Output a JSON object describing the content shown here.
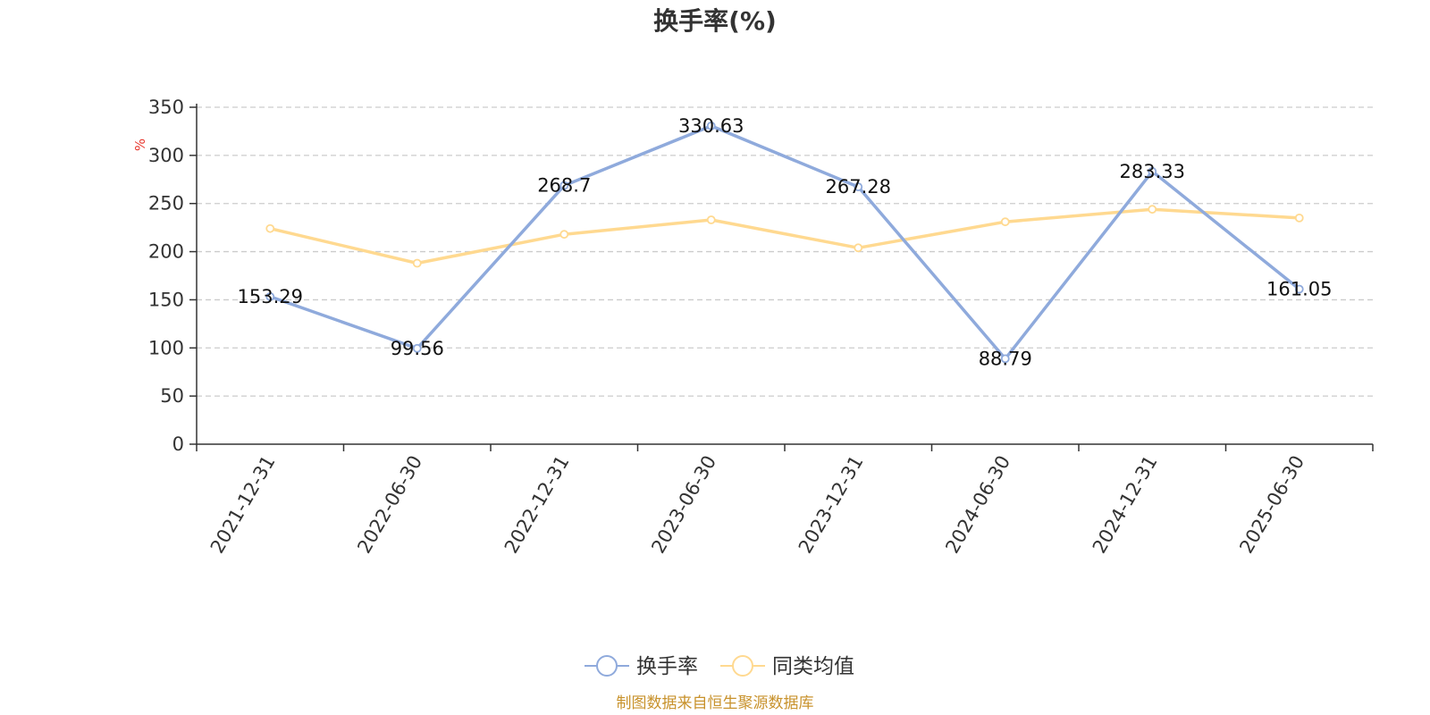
{
  "title": "换手率(%)",
  "source": "制图数据来自恒生聚源数据库",
  "chart_data": {
    "type": "line",
    "title": "换手率(%)",
    "ylabel": "%",
    "ylim": [
      0,
      350
    ],
    "yticks": [
      0,
      50,
      100,
      150,
      200,
      250,
      300,
      350
    ],
    "grid": true,
    "legend_position": "bottom",
    "categories": [
      "2021-12-31",
      "2022-06-30",
      "2022-12-31",
      "2023-06-30",
      "2023-12-31",
      "2024-06-30",
      "2024-12-31",
      "2025-06-30"
    ],
    "series": [
      {
        "name": "换手率",
        "color": "#8faadc",
        "values": [
          153.29,
          99.56,
          268.7,
          330.63,
          267.28,
          88.79,
          283.33,
          161.05
        ],
        "labels": [
          "153.29",
          "99.56",
          "268.7",
          "330.63",
          "267.28",
          "88.79",
          "283.33",
          "161.05"
        ]
      },
      {
        "name": "同类均值",
        "color": "#ffd990",
        "values": [
          224,
          188,
          218,
          233,
          204,
          231,
          244,
          235
        ]
      }
    ]
  },
  "colors": {
    "axis": "#333333",
    "grid": "#cccccc",
    "unit": "#e8382f",
    "source": "#c8922c"
  }
}
